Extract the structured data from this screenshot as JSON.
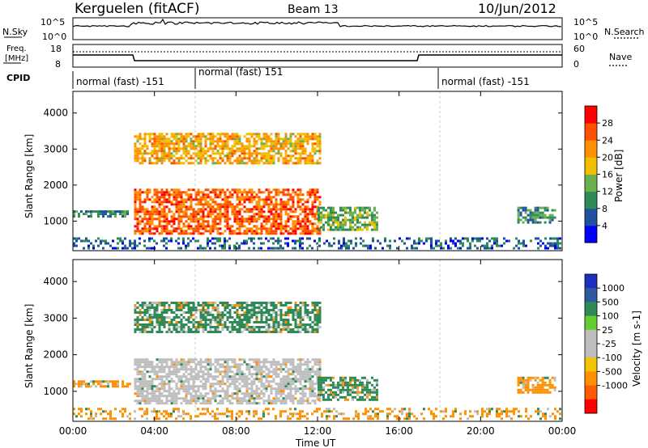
{
  "header": {
    "station": "Kerguelen (fitACF)",
    "beam": "Beam 13",
    "date": "10/Jun/2012"
  },
  "top_panels": {
    "nsky": {
      "label": "N.Sky",
      "ticks": [
        "10^5",
        "10^0"
      ]
    },
    "nsearch": {
      "label": "N.Search",
      "ticks": [
        "10^5",
        "10^0"
      ]
    },
    "freq": {
      "label_line1": "Freq.",
      "label_line2": "[MHz]",
      "ticks": [
        "18",
        "8"
      ]
    },
    "nave": {
      "label": "Nave",
      "ticks": [
        "60",
        "0"
      ]
    },
    "cpid": {
      "label": "CPID",
      "segments": [
        {
          "start_hour": 0,
          "label": "normal (fast) -151"
        },
        {
          "start_hour": 6,
          "label": "normal (fast) 151"
        },
        {
          "start_hour": 18,
          "label": "normal (fast) -151"
        }
      ]
    }
  },
  "colors": {
    "power_scale": [
      "#0000ff",
      "#2050a0",
      "#2e8b57",
      "#6ab04c",
      "#f0c000",
      "#ff9000",
      "#ff5000",
      "#ff0000"
    ],
    "velocity_scale": [
      "#1c2fbf",
      "#2f5a9e",
      "#2e8b57",
      "#66cc33",
      "#bebebe",
      "#bebebe",
      "#f5c400",
      "#ff9000",
      "#ff5a00",
      "#ff0000"
    ]
  },
  "chart_data": [
    {
      "type": "heatmap",
      "title": "Power",
      "xlabel": "Time UT",
      "ylabel": "Slant Range [km]",
      "xlim": [
        0,
        24
      ],
      "ylim": [
        180,
        4600
      ],
      "x_ticks": [
        "00:00",
        "04:00",
        "08:00",
        "12:00",
        "16:00",
        "20:00",
        "00:00"
      ],
      "y_ticks": [
        1000,
        2000,
        3000,
        4000
      ],
      "colorbar": {
        "label": "Power [dB]",
        "ticks": [
          4,
          8,
          12,
          16,
          20,
          24,
          28
        ],
        "range": [
          0,
          32
        ]
      },
      "regions": [
        {
          "x": [
            0.0,
            2.9
          ],
          "y": [
            1050,
            1300
          ],
          "value": 9
        },
        {
          "x": [
            3.0,
            12.2
          ],
          "y": [
            600,
            1900
          ],
          "value": 25
        },
        {
          "x": [
            3.0,
            12.2
          ],
          "y": [
            2550,
            3450
          ],
          "value": 20
        },
        {
          "x": [
            12.0,
            15.0
          ],
          "y": [
            700,
            1400
          ],
          "value": 13
        },
        {
          "x": [
            21.8,
            23.8
          ],
          "y": [
            900,
            1400
          ],
          "value": 10
        },
        {
          "x": [
            0.0,
            24.0
          ],
          "y": [
            200,
            550
          ],
          "value": 7
        }
      ]
    },
    {
      "type": "heatmap",
      "title": "Velocity",
      "xlabel": "Time UT",
      "ylabel": "Slant Range [km]",
      "xlim": [
        0,
        24
      ],
      "ylim": [
        180,
        4600
      ],
      "x_ticks": [
        "00:00",
        "04:00",
        "08:00",
        "12:00",
        "16:00",
        "20:00",
        "00:00"
      ],
      "y_ticks": [
        1000,
        2000,
        3000,
        4000
      ],
      "colorbar": {
        "label": "Velocity [m s-1]",
        "ticks": [
          "1000",
          "500",
          "100",
          "25",
          "-25",
          "-100",
          "-500",
          "-1000"
        ]
      },
      "regions": [
        {
          "x": [
            0.0,
            2.9
          ],
          "y": [
            1050,
            1300
          ],
          "value": -100
        },
        {
          "x": [
            3.0,
            12.2
          ],
          "y": [
            600,
            1900
          ],
          "value": 0
        },
        {
          "x": [
            3.0,
            12.2
          ],
          "y": [
            2550,
            3450
          ],
          "value": 100
        },
        {
          "x": [
            12.0,
            15.0
          ],
          "y": [
            700,
            1400
          ],
          "value": 100
        },
        {
          "x": [
            21.8,
            23.8
          ],
          "y": [
            900,
            1400
          ],
          "value": -100
        },
        {
          "x": [
            0.0,
            24.0
          ],
          "y": [
            200,
            550
          ],
          "value": -100
        }
      ]
    }
  ]
}
